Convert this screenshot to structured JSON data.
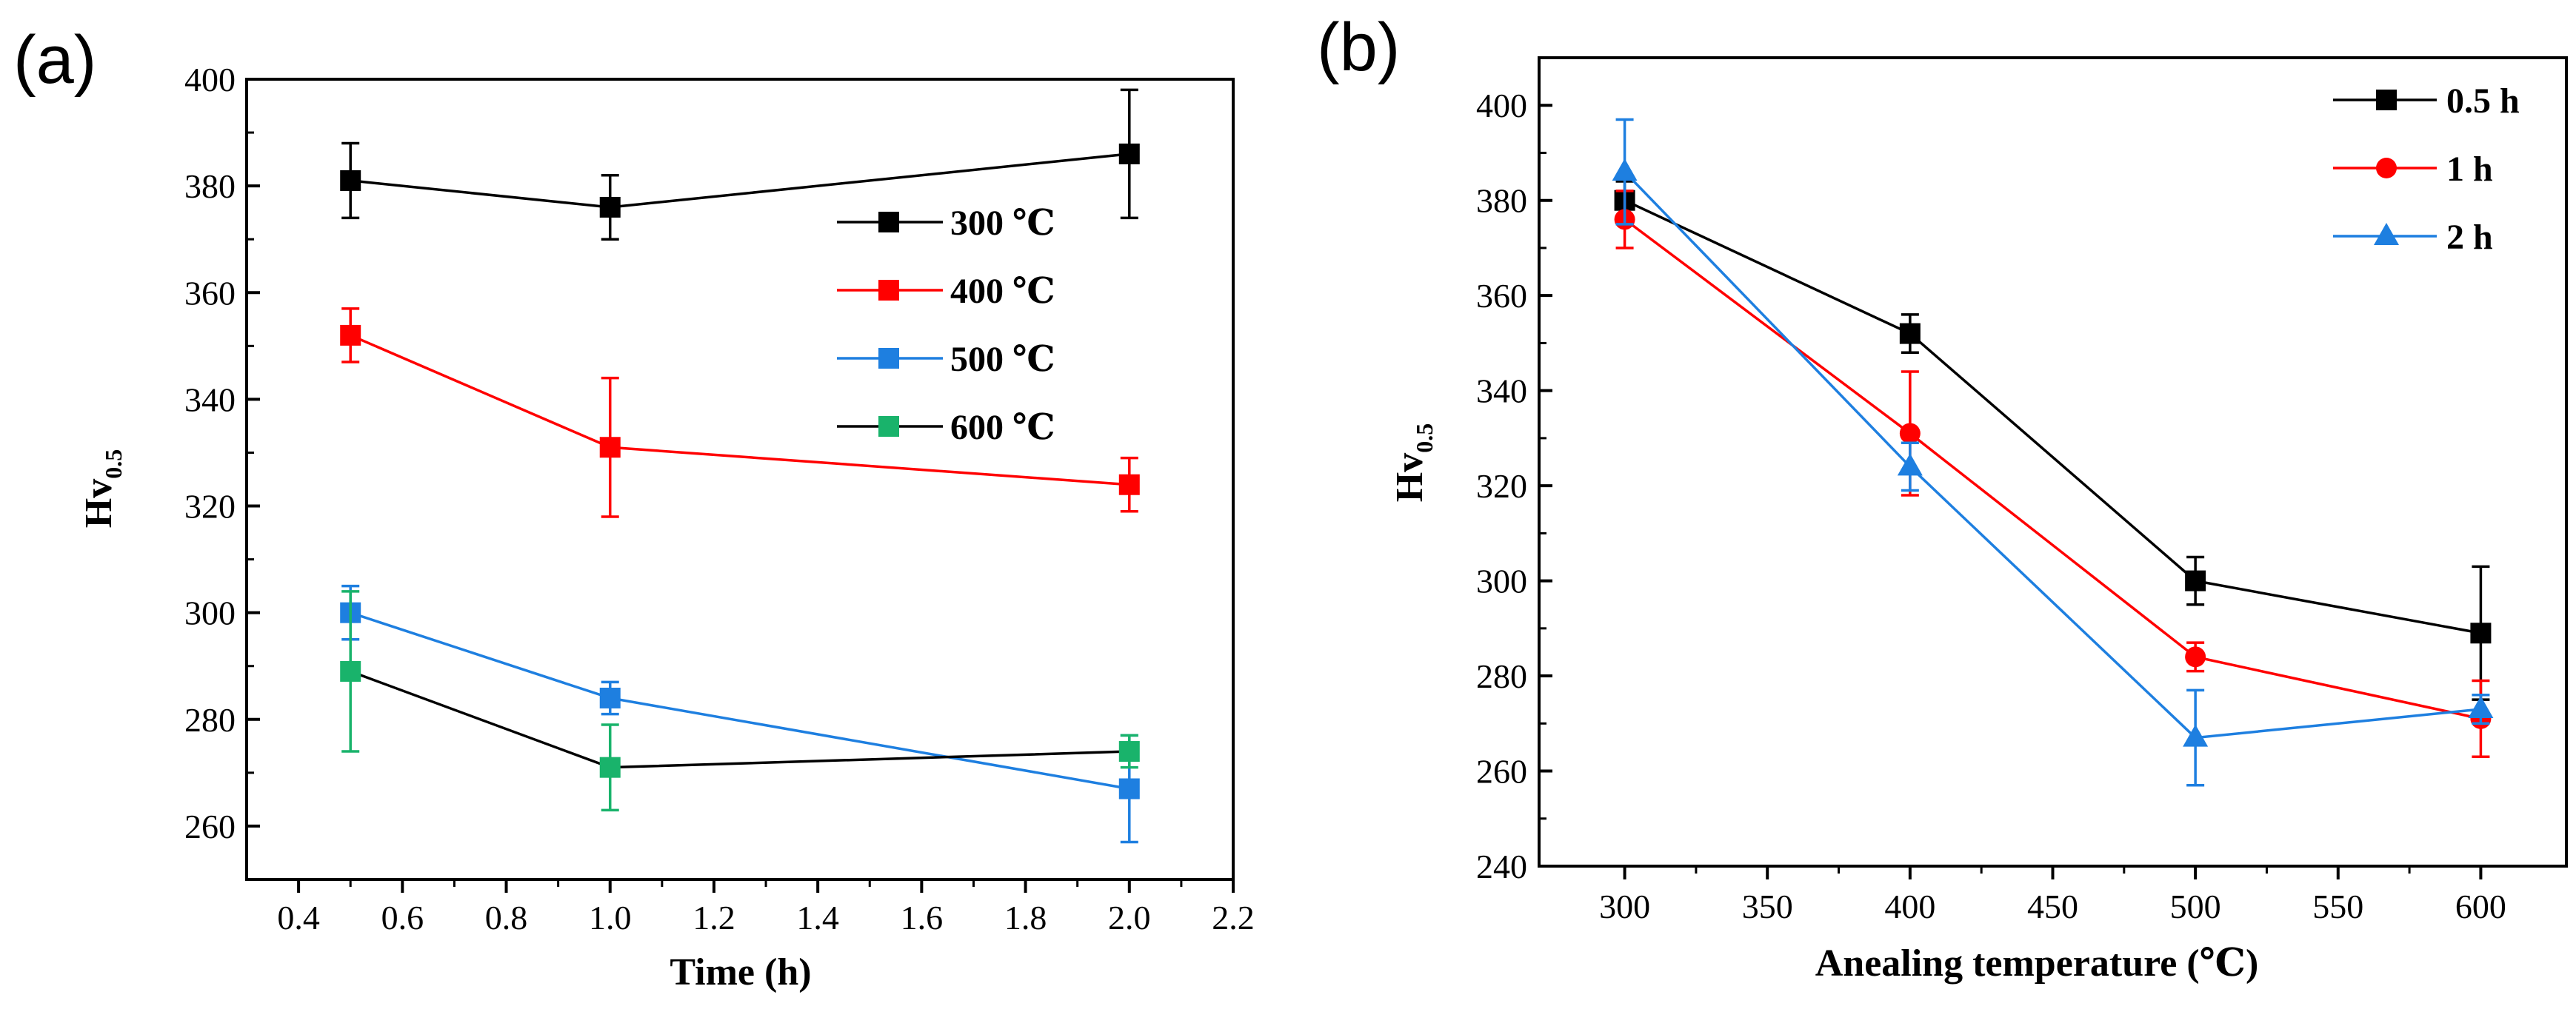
{
  "chart_data": [
    {
      "panel": "(a)",
      "type": "line",
      "xlabel": "Time (h)",
      "ylabel": "Hv",
      "ylabel_sub": "0.5",
      "xlim": [
        0.3,
        2.2
      ],
      "ylim": [
        250,
        400
      ],
      "xticks": [
        0.4,
        0.6,
        0.8,
        1.0,
        1.2,
        1.4,
        1.6,
        1.8,
        2.0,
        2.2
      ],
      "xtick_labels": [
        "0.4",
        "0.6",
        "0.8",
        "1.0",
        "1.2",
        "1.4",
        "1.6",
        "1.8",
        "2.0",
        "2.2"
      ],
      "yticks": [
        260,
        280,
        300,
        320,
        340,
        360,
        380,
        400
      ],
      "ytick_labels": [
        "260",
        "280",
        "300",
        "320",
        "340",
        "360",
        "380",
        "400"
      ],
      "legend_position": "top-right",
      "x": [
        0.5,
        1.0,
        2.0
      ],
      "series": [
        {
          "name": "300 ℃",
          "marker": "square",
          "color": "#000000",
          "values": [
            381,
            376,
            386
          ],
          "err": [
            7,
            6,
            12
          ]
        },
        {
          "name": "400 ℃",
          "marker": "square",
          "color": "#ff0000",
          "values": [
            352,
            331,
            324
          ],
          "err": [
            5,
            13,
            5
          ]
        },
        {
          "name": "500 ℃",
          "marker": "square",
          "color": "#1e7fe0",
          "values": [
            300,
            284,
            267
          ],
          "err": [
            5,
            3,
            10
          ]
        },
        {
          "name": "600 ℃",
          "marker": "square",
          "color": "#19b36b",
          "line_color": "#000000",
          "values": [
            289,
            271,
            274
          ],
          "err": [
            15,
            8,
            3
          ]
        }
      ]
    },
    {
      "panel": "(b)",
      "type": "line",
      "xlabel": "Anealing temperature (℃)",
      "ylabel": "Hv",
      "ylabel_sub": "0.5",
      "xlim": [
        270,
        630
      ],
      "ylim": [
        240,
        410
      ],
      "xticks": [
        300,
        350,
        400,
        450,
        500,
        550,
        600
      ],
      "xtick_labels": [
        "300",
        "350",
        "400",
        "450",
        "500",
        "550",
        "600"
      ],
      "yticks": [
        240,
        260,
        280,
        300,
        320,
        340,
        360,
        380,
        400
      ],
      "ytick_labels": [
        "240",
        "260",
        "280",
        "300",
        "320",
        "340",
        "360",
        "380",
        "400"
      ],
      "legend_position": "top-right",
      "x": [
        300,
        400,
        500,
        600
      ],
      "series": [
        {
          "name": "0.5 h",
          "marker": "square",
          "color": "#000000",
          "values": [
            380,
            352,
            300,
            289
          ],
          "err": [
            4,
            4,
            5,
            14
          ]
        },
        {
          "name": "1 h",
          "marker": "circle",
          "color": "#ff0000",
          "values": [
            376,
            331,
            284,
            271
          ],
          "err": [
            6,
            13,
            3,
            8
          ]
        },
        {
          "name": "2 h",
          "marker": "triangle",
          "color": "#1e7fe0",
          "values": [
            386,
            324,
            267,
            273
          ],
          "err": [
            11,
            5,
            10,
            3
          ]
        }
      ]
    }
  ]
}
